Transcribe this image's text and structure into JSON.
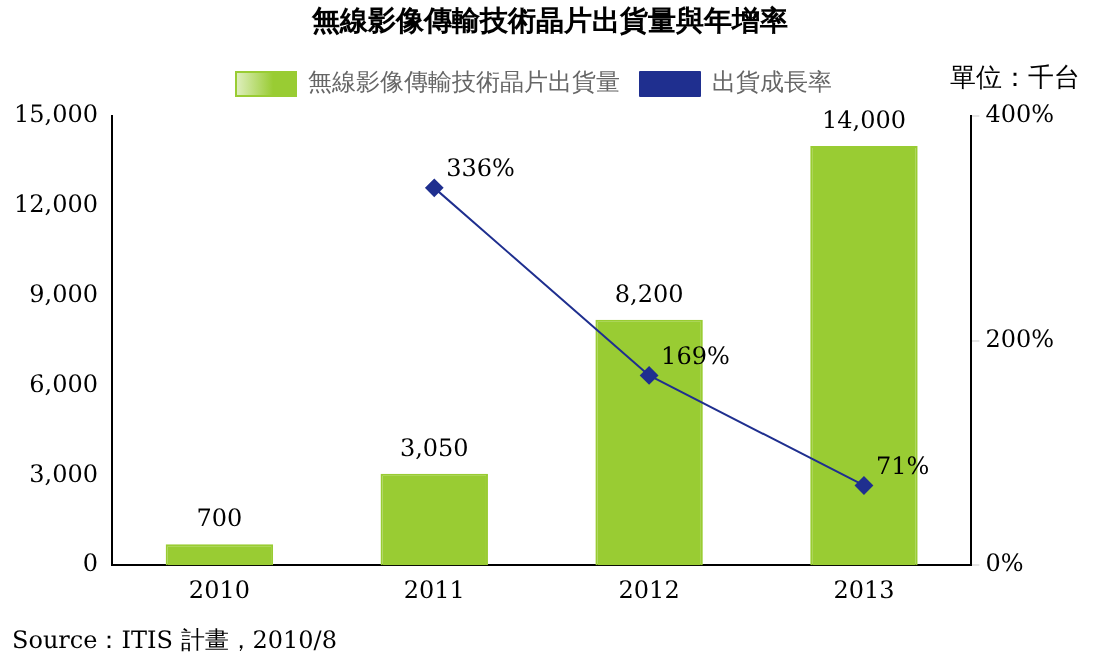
{
  "chart_data": {
    "type": "bar",
    "title": "無線影像傳輸技術晶片出貨量與年增率",
    "subtitle": "單位：千台",
    "annotations": [
      "Source：ITIS 計畫，2010/8"
    ],
    "categories": [
      "2010",
      "2011",
      "2012",
      "2013"
    ],
    "series": [
      {
        "name": "無線影像傳輸技術晶片出貨量",
        "color": "#99cc33",
        "values": [
          700,
          3050,
          8200,
          14000
        ],
        "value_labels": [
          "700",
          "3,050",
          "8,200",
          "14,000"
        ]
      },
      {
        "name": "出貨成長率",
        "type": "line",
        "axis": "y2",
        "color": "#1f2f8f",
        "values": [
          null,
          336,
          169,
          71
        ],
        "value_labels": [
          null,
          "336%",
          "169%",
          "71%"
        ]
      }
    ],
    "ylim": [
      0,
      15000
    ],
    "yticks": [
      {
        "value": 0,
        "label": "0"
      },
      {
        "value": 3000,
        "label": "3,000"
      },
      {
        "value": 6000,
        "label": "6,000"
      },
      {
        "value": 9000,
        "label": "9,000"
      },
      {
        "value": 12000,
        "label": "12,000"
      },
      {
        "value": 15000,
        "label": "15,000"
      }
    ],
    "y2lim": [
      0,
      400
    ],
    "y2ticks": [
      {
        "value": 0,
        "label": "0%"
      },
      {
        "value": 200,
        "label": "200%"
      },
      {
        "value": 400,
        "label": "400%"
      }
    ],
    "grid": false,
    "legend": "top",
    "marker": "diamond",
    "line_style": "solid"
  }
}
